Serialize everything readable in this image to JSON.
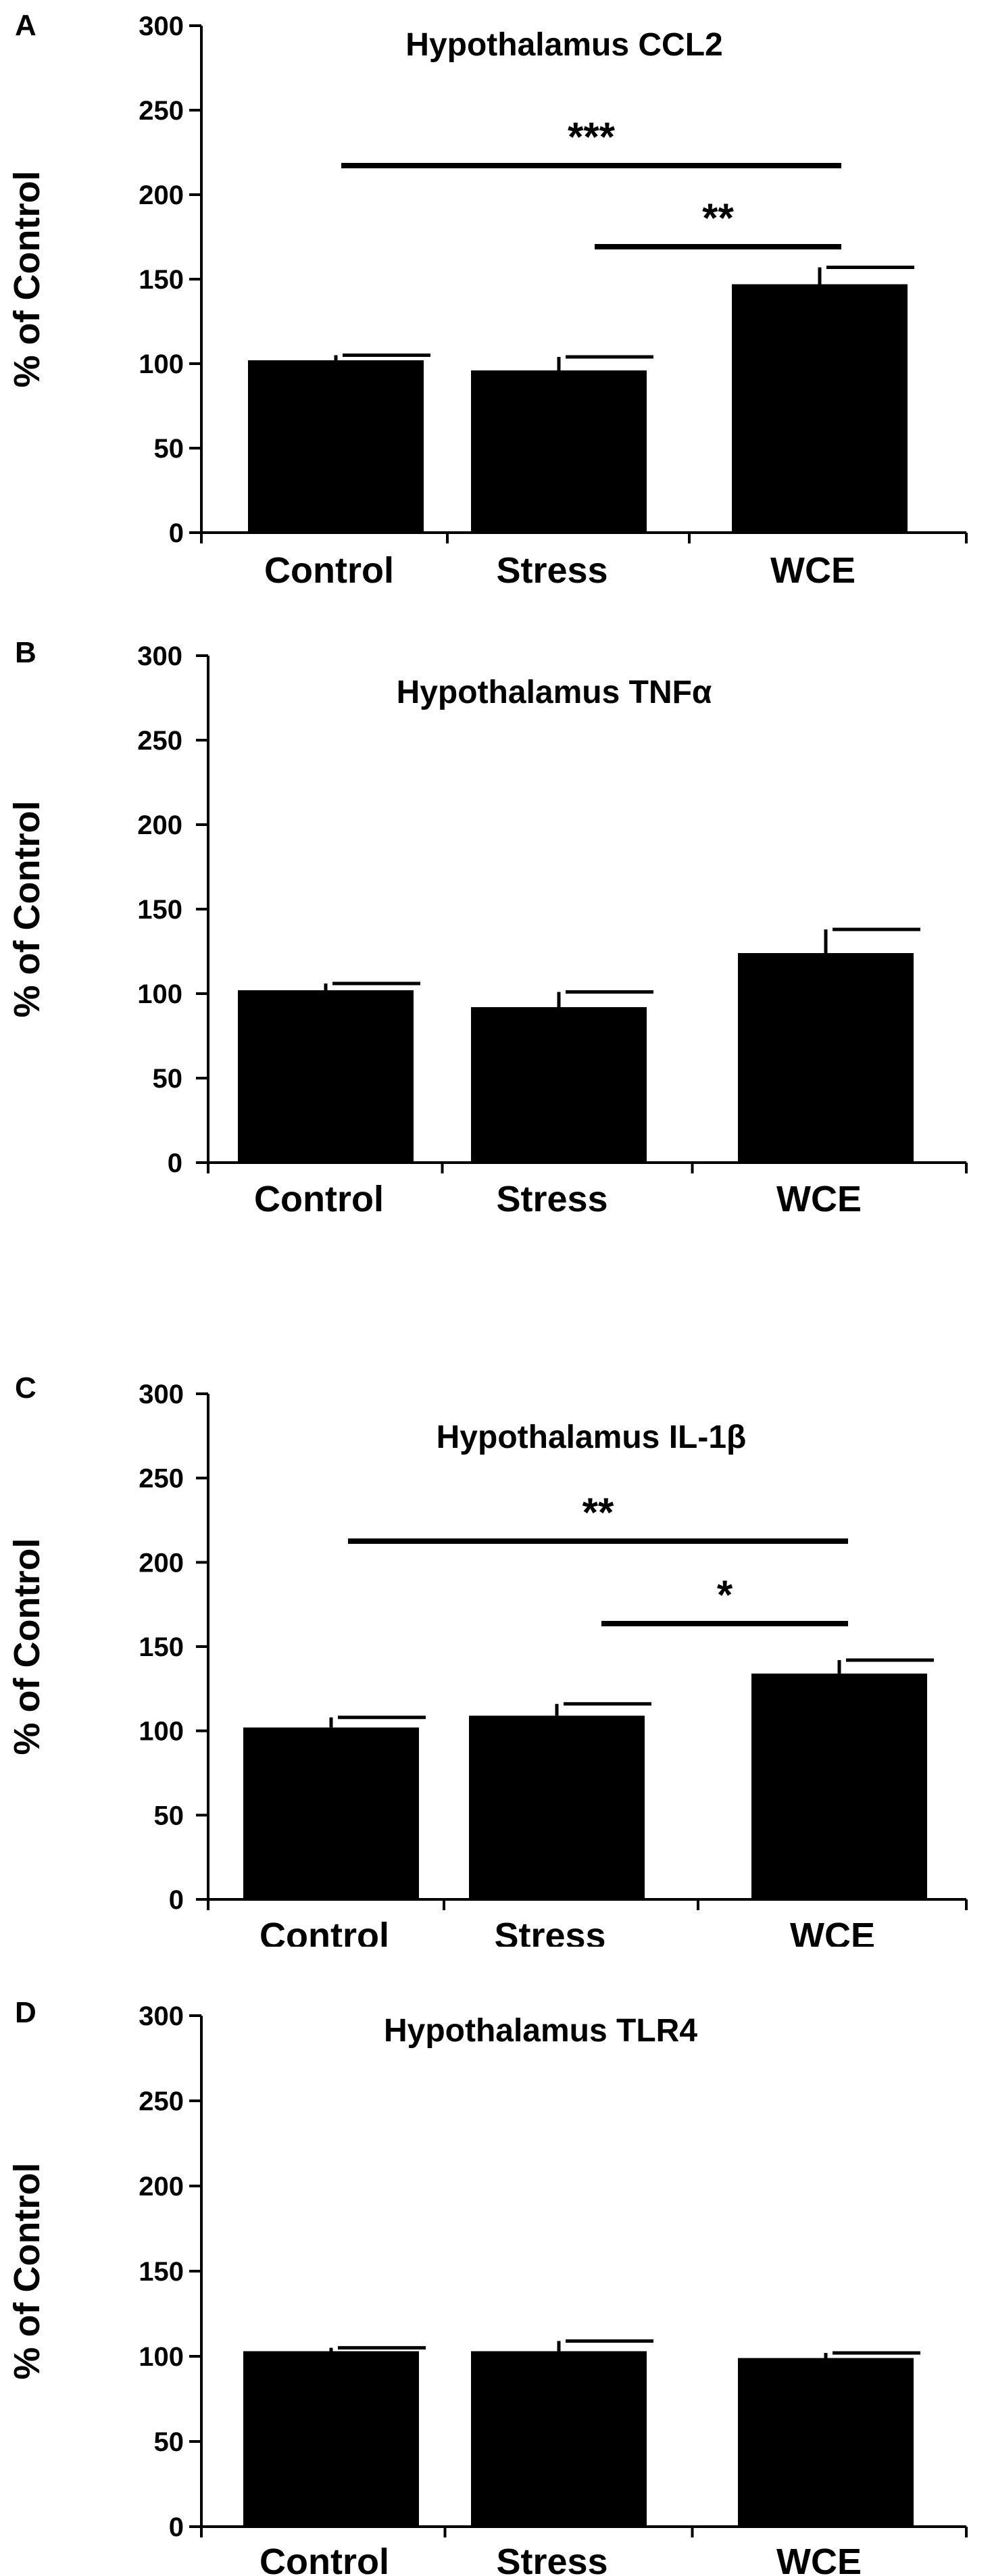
{
  "chart_data": [
    {
      "panel": "A",
      "type": "bar",
      "title": "Hypothalamus CCL2",
      "ylabel": "% of Control",
      "xlabel": "",
      "ylim": [
        0,
        300
      ],
      "yticks": [
        0,
        50,
        100,
        150,
        200,
        250,
        300
      ],
      "categories": [
        "Control",
        "Stress",
        "WCE"
      ],
      "values": [
        102,
        96,
        147
      ],
      "errors": [
        3,
        8,
        10
      ],
      "significance": [
        {
          "from": "Control",
          "to": "WCE",
          "label": "***"
        },
        {
          "from": "Stress",
          "to": "WCE",
          "label": "**"
        }
      ]
    },
    {
      "panel": "B",
      "type": "bar",
      "title": "Hypothalamus TNFα",
      "ylabel": "% of Control",
      "xlabel": "",
      "ylim": [
        0,
        300
      ],
      "yticks": [
        0,
        50,
        100,
        150,
        200,
        250,
        300
      ],
      "categories": [
        "Control",
        "Stress",
        "WCE"
      ],
      "values": [
        102,
        92,
        124
      ],
      "errors": [
        4,
        9,
        14
      ],
      "significance": []
    },
    {
      "panel": "C",
      "type": "bar",
      "title": "Hypothalamus IL-1β",
      "ylabel": "% of Control",
      "xlabel": "",
      "ylim": [
        0,
        300
      ],
      "yticks": [
        0,
        50,
        100,
        150,
        200,
        250,
        300
      ],
      "categories": [
        "Control",
        "Stress",
        "WCE"
      ],
      "values": [
        102,
        109,
        134
      ],
      "errors": [
        6,
        7,
        8
      ],
      "significance": [
        {
          "from": "Control",
          "to": "WCE",
          "label": "**"
        },
        {
          "from": "Stress",
          "to": "WCE",
          "label": "*"
        }
      ]
    },
    {
      "panel": "D",
      "type": "bar",
      "title": "Hypothalamus TLR4",
      "ylabel": "% of Control",
      "xlabel": "",
      "ylim": [
        0,
        300
      ],
      "yticks": [
        0,
        50,
        100,
        150,
        200,
        250,
        300
      ],
      "categories": [
        "Control",
        "Stress",
        "WCE"
      ],
      "values": [
        103,
        103,
        99
      ],
      "errors": [
        2,
        6,
        3
      ],
      "significance": []
    }
  ],
  "colors": {
    "bar": "#000000",
    "axis": "#000000",
    "background": "#ffffff"
  }
}
